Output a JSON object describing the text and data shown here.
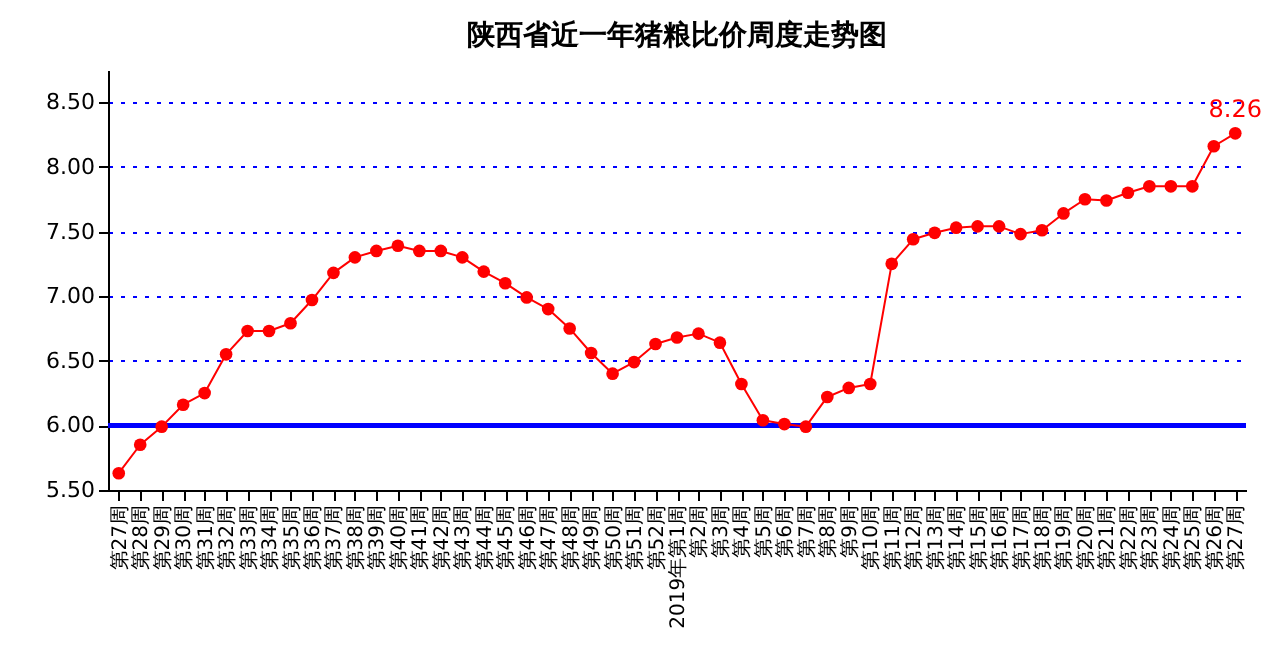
{
  "chart_data": {
    "type": "line",
    "title": "陕西省近一年猪粮比价周度走势图",
    "categories": [
      "第27周",
      "第28周",
      "第29周",
      "第30周",
      "第31周",
      "第32周",
      "第33周",
      "第34周",
      "第35周",
      "第36周",
      "第37周",
      "第38周",
      "第39周",
      "第40周",
      "第41周",
      "第42周",
      "第43周",
      "第44周",
      "第45周",
      "第46周",
      "第47周",
      "第48周",
      "第49周",
      "第50周",
      "第51周",
      "第52周",
      "2019年第1周",
      "第2周",
      "第3周",
      "第4周",
      "第5周",
      "第6周",
      "第7周",
      "第8周",
      "第9周",
      "第10周",
      "第11周",
      "第12周",
      "第13周",
      "第14周",
      "第15周",
      "第16周",
      "第17周",
      "第18周",
      "第19周",
      "第20周",
      "第21周",
      "第22周",
      "第23周",
      "第24周",
      "第25周",
      "第26周",
      "第27周"
    ],
    "series": [
      {
        "color": "#ff0000",
        "values": [
          5.63,
          5.85,
          5.99,
          6.16,
          6.25,
          6.55,
          6.73,
          6.73,
          6.79,
          6.97,
          7.18,
          7.3,
          7.35,
          7.39,
          7.35,
          7.35,
          7.3,
          7.19,
          7.1,
          6.99,
          6.9,
          6.75,
          6.56,
          6.4,
          6.49,
          6.63,
          6.68,
          6.71,
          6.64,
          6.32,
          6.04,
          6.01,
          5.99,
          6.22,
          6.29,
          6.32,
          7.25,
          7.44,
          7.49,
          7.53,
          7.54,
          7.54,
          7.48,
          7.51,
          7.64,
          7.75,
          7.74,
          7.8,
          7.85,
          7.85,
          7.85,
          8.16,
          8.26
        ],
        "value_labels": [
          null,
          null,
          null,
          null,
          null,
          null,
          null,
          null,
          null,
          null,
          null,
          null,
          null,
          null,
          null,
          null,
          null,
          null,
          null,
          null,
          null,
          null,
          null,
          null,
          null,
          null,
          null,
          null,
          null,
          null,
          null,
          null,
          null,
          null,
          null,
          null,
          null,
          null,
          null,
          null,
          null,
          null,
          null,
          null,
          null,
          null,
          null,
          null,
          null,
          null,
          null,
          null,
          "8.26"
        ]
      }
    ],
    "ylim": [
      5.5,
      8.75
    ],
    "yticks": [
      {
        "value": 5.5,
        "label": "5.50"
      },
      {
        "value": 6,
        "label": "6.00"
      },
      {
        "value": 6.5,
        "label": "6.50"
      },
      {
        "value": 7,
        "label": "7.00"
      },
      {
        "value": 7.5,
        "label": "7.50"
      },
      {
        "value": 8,
        "label": "8.00"
      },
      {
        "value": 8.5,
        "label": "8.50"
      }
    ],
    "ref_lines": [
      {
        "axis": "y",
        "value": 6,
        "color": "#0000ff"
      }
    ],
    "grid": "y",
    "marker": "circle",
    "line_style": "solid"
  }
}
